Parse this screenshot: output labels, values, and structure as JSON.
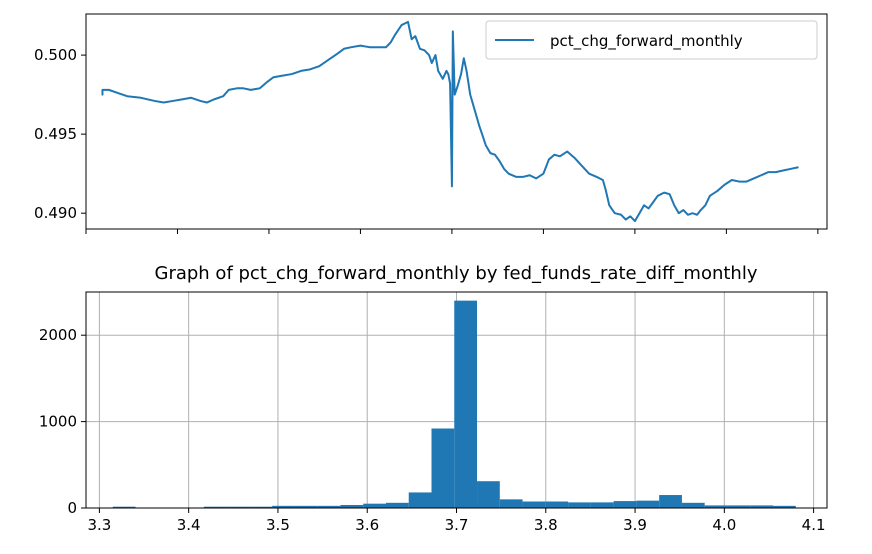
{
  "chart_data": [
    {
      "type": "line",
      "title": "",
      "xlabel": "",
      "ylabel": "",
      "legend": {
        "entries": [
          "pct_chg_forward_monthly"
        ],
        "placement": "top-right"
      },
      "xlim": [
        3.3,
        4.11
      ],
      "ylim": [
        0.489,
        0.5026
      ],
      "yticks": [
        0.49,
        0.495,
        0.5
      ],
      "ytick_labels": [
        "0.490",
        "0.495",
        "0.500"
      ],
      "xticks": [
        3.3,
        3.4,
        3.5,
        3.6,
        3.7,
        3.8,
        3.9,
        4.0,
        4.1
      ],
      "show_x_tick_labels": false,
      "color": "#1f77b4",
      "series": [
        {
          "name": "pct_chg_forward_monthly",
          "points": [
            [
              3.318,
              0.4975
            ],
            [
              3.318,
              0.4978
            ],
            [
              3.325,
              0.4978
            ],
            [
              3.335,
              0.4976
            ],
            [
              3.345,
              0.4974
            ],
            [
              3.36,
              0.4973
            ],
            [
              3.375,
              0.4971
            ],
            [
              3.385,
              0.497
            ],
            [
              3.395,
              0.4971
            ],
            [
              3.405,
              0.4972
            ],
            [
              3.415,
              0.4973
            ],
            [
              3.425,
              0.4971
            ],
            [
              3.432,
              0.497
            ],
            [
              3.44,
              0.4972
            ],
            [
              3.45,
              0.4974
            ],
            [
              3.456,
              0.4978
            ],
            [
              3.465,
              0.4979
            ],
            [
              3.472,
              0.4979
            ],
            [
              3.48,
              0.4978
            ],
            [
              3.49,
              0.4979
            ],
            [
              3.498,
              0.4983
            ],
            [
              3.505,
              0.4986
            ],
            [
              3.515,
              0.4987
            ],
            [
              3.525,
              0.4988
            ],
            [
              3.535,
              0.499
            ],
            [
              3.545,
              0.4991
            ],
            [
              3.555,
              0.4993
            ],
            [
              3.565,
              0.4997
            ],
            [
              3.575,
              0.5001
            ],
            [
              3.582,
              0.5004
            ],
            [
              3.59,
              0.5005
            ],
            [
              3.6,
              0.5006
            ],
            [
              3.61,
              0.5005
            ],
            [
              3.62,
              0.5005
            ],
            [
              3.628,
              0.5005
            ],
            [
              3.633,
              0.5008
            ],
            [
              3.638,
              0.5013
            ],
            [
              3.645,
              0.5019
            ],
            [
              3.652,
              0.5021
            ],
            [
              3.656,
              0.501
            ],
            [
              3.66,
              0.5012
            ],
            [
              3.665,
              0.5004
            ],
            [
              3.67,
              0.5003
            ],
            [
              3.675,
              0.5
            ],
            [
              3.678,
              0.4995
            ],
            [
              3.682,
              0.5
            ],
            [
              3.685,
              0.499
            ],
            [
              3.69,
              0.4985
            ],
            [
              3.694,
              0.499
            ],
            [
              3.696,
              0.4988
            ],
            [
              3.698,
              0.4982
            ],
            [
              3.7,
              0.4917
            ],
            [
              3.701,
              0.5015
            ],
            [
              3.703,
              0.4975
            ],
            [
              3.706,
              0.498
            ],
            [
              3.71,
              0.4988
            ],
            [
              3.713,
              0.4998
            ],
            [
              3.716,
              0.499
            ],
            [
              3.72,
              0.4975
            ],
            [
              3.725,
              0.4965
            ],
            [
              3.73,
              0.4955
            ],
            [
              3.733,
              0.495
            ],
            [
              3.737,
              0.4943
            ],
            [
              3.742,
              0.4938
            ],
            [
              3.747,
              0.4937
            ],
            [
              3.752,
              0.4933
            ],
            [
              3.757,
              0.4928
            ],
            [
              3.762,
              0.4925
            ],
            [
              3.77,
              0.4923
            ],
            [
              3.778,
              0.4923
            ],
            [
              3.785,
              0.4924
            ],
            [
              3.792,
              0.4922
            ],
            [
              3.8,
              0.4925
            ],
            [
              3.806,
              0.4934
            ],
            [
              3.812,
              0.4937
            ],
            [
              3.818,
              0.4936
            ],
            [
              3.826,
              0.4939
            ],
            [
              3.834,
              0.4935
            ],
            [
              3.842,
              0.493
            ],
            [
              3.85,
              0.4925
            ],
            [
              3.858,
              0.4923
            ],
            [
              3.865,
              0.4921
            ],
            [
              3.868,
              0.4915
            ],
            [
              3.872,
              0.4905
            ],
            [
              3.878,
              0.49
            ],
            [
              3.885,
              0.4899
            ],
            [
              3.89,
              0.4896
            ],
            [
              3.895,
              0.4898
            ],
            [
              3.9,
              0.4895
            ],
            [
              3.905,
              0.49
            ],
            [
              3.91,
              0.4905
            ],
            [
              3.915,
              0.4903
            ],
            [
              3.92,
              0.4907
            ],
            [
              3.925,
              0.4911
            ],
            [
              3.932,
              0.4913
            ],
            [
              3.938,
              0.4912
            ],
            [
              3.943,
              0.4905
            ],
            [
              3.948,
              0.49
            ],
            [
              3.953,
              0.4902
            ],
            [
              3.958,
              0.4899
            ],
            [
              3.963,
              0.49
            ],
            [
              3.968,
              0.4899
            ],
            [
              3.972,
              0.4902
            ],
            [
              3.977,
              0.4905
            ],
            [
              3.982,
              0.4911
            ],
            [
              3.99,
              0.4914
            ],
            [
              3.998,
              0.4918
            ],
            [
              4.006,
              0.4921
            ],
            [
              4.014,
              0.492
            ],
            [
              4.022,
              0.492
            ],
            [
              4.03,
              0.4922
            ],
            [
              4.038,
              0.4924
            ],
            [
              4.046,
              0.4926
            ],
            [
              4.054,
              0.4926
            ],
            [
              4.062,
              0.4927
            ],
            [
              4.07,
              0.4928
            ],
            [
              4.078,
              0.4929
            ]
          ]
        }
      ]
    },
    {
      "type": "bar",
      "title": "Graph of pct_chg_forward_monthly by fed_funds_rate_diff_monthly",
      "xlabel": "",
      "ylabel": "",
      "grid": true,
      "xlim": [
        3.285,
        4.115
      ],
      "ylim": [
        0,
        2500
      ],
      "xticks": [
        3.3,
        3.4,
        3.5,
        3.6,
        3.7,
        3.8,
        3.9,
        4.0,
        4.1
      ],
      "xtick_labels": [
        "3.3",
        "3.4",
        "3.5",
        "3.6",
        "3.7",
        "3.8",
        "3.9",
        "4.0",
        "4.1"
      ],
      "yticks": [
        0,
        1000,
        2000
      ],
      "ytick_labels": [
        "0",
        "1000",
        "2000"
      ],
      "color": "#1f77b4",
      "bin_edges": [
        3.315,
        3.3405,
        3.366,
        3.3915,
        3.417,
        3.4425,
        3.468,
        3.4935,
        3.519,
        3.5445,
        3.57,
        3.5955,
        3.621,
        3.6465,
        3.672,
        3.6975,
        3.723,
        3.7485,
        3.774,
        3.7995,
        3.825,
        3.8505,
        3.876,
        3.9015,
        3.927,
        3.9525,
        3.978,
        4.0035,
        4.029,
        4.0545,
        4.08
      ],
      "values": [
        15,
        3,
        3,
        3,
        15,
        15,
        15,
        25,
        25,
        25,
        35,
        50,
        60,
        180,
        920,
        2400,
        310,
        100,
        75,
        75,
        65,
        65,
        80,
        85,
        150,
        60,
        30,
        30,
        30,
        25
      ]
    }
  ]
}
